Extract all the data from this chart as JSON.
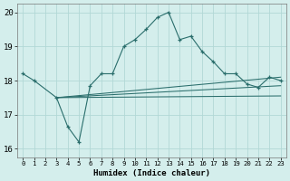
{
  "background_color": "#d4eeec",
  "grid_color": "#b2d8d6",
  "line_color": "#2a6e6c",
  "xlabel": "Humidex (Indice chaleur)",
  "xlim": [
    -0.5,
    23.5
  ],
  "ylim": [
    15.75,
    20.25
  ],
  "x_ticks": [
    0,
    1,
    2,
    3,
    4,
    5,
    6,
    7,
    8,
    9,
    10,
    11,
    12,
    13,
    14,
    15,
    16,
    17,
    18,
    19,
    20,
    21,
    22,
    23
  ],
  "y_ticks": [
    16,
    17,
    18,
    19,
    20
  ],
  "main_x": [
    0,
    1,
    3,
    4,
    5,
    6,
    7,
    8,
    9,
    10,
    11,
    12,
    13,
    14,
    15,
    16,
    17,
    18,
    19,
    20,
    21,
    22,
    23
  ],
  "main_y": [
    18.2,
    18.0,
    17.5,
    16.65,
    16.2,
    17.85,
    18.2,
    18.2,
    19.0,
    19.2,
    19.5,
    19.85,
    20.0,
    19.2,
    19.3,
    18.85,
    18.55,
    18.2,
    18.2,
    17.9,
    17.8,
    18.1,
    18.0
  ],
  "straight_lines": [
    {
      "x": [
        3,
        23
      ],
      "y": [
        17.5,
        18.1
      ]
    },
    {
      "x": [
        3,
        23
      ],
      "y": [
        17.5,
        17.85
      ]
    },
    {
      "x": [
        3,
        23
      ],
      "y": [
        17.5,
        17.55
      ]
    }
  ]
}
